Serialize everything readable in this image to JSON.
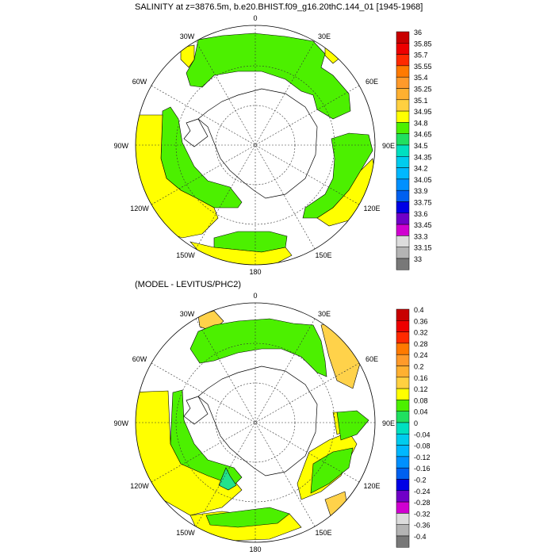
{
  "titles": {
    "top": "SALINITY at z=3876.5m, b.e20.BHIST.f09_g16.20thC.144_01 [1945-1968]",
    "bottom": "(MODEL - LEVITUS/PHC2)"
  },
  "longitude_labels": [
    "0",
    "30E",
    "60E",
    "90E",
    "120E",
    "150E",
    "180",
    "150W",
    "120W",
    "90W",
    "60W",
    "30W"
  ],
  "colors": {
    "ocean_green": "#4cf000",
    "yellow": "#ffff00",
    "pale_orange": "#ffd24a",
    "light_green": "#22e38b",
    "land": "#ffffff",
    "outline": "#000000"
  },
  "chart_data": [
    {
      "type": "heatmap",
      "projection": "south-polar-stereographic",
      "title": "SALINITY at z=3876.5m, b.e20.BHIST.f09_g16.20thC.144_01 [1945-1968]",
      "colorbar": {
        "labels": [
          "36",
          "35.85",
          "35.7",
          "35.55",
          "35.4",
          "35.25",
          "35.1",
          "34.95",
          "34.8",
          "34.65",
          "34.5",
          "34.35",
          "34.2",
          "34.05",
          "33.9",
          "33.75",
          "33.6",
          "33.45",
          "33.3",
          "33.15",
          "33"
        ],
        "colors": [
          "#c80000",
          "#ee0000",
          "#ff2a00",
          "#ff7a00",
          "#ff9a2a",
          "#ffb030",
          "#ffd040",
          "#ffff00",
          "#4cf000",
          "#20e060",
          "#00e0c0",
          "#00ccee",
          "#00b8ff",
          "#0090ff",
          "#0060f0",
          "#0000e6",
          "#7000c8",
          "#d000d0",
          "#dcdcdc",
          "#b4b4b4",
          "#787878"
        ]
      },
      "dominant_value_range": [
        34.8,
        34.95
      ],
      "longitude_labels": [
        "0",
        "30E",
        "60E",
        "90E",
        "120E",
        "150E",
        "180",
        "150W",
        "120W",
        "90W",
        "60W",
        "30W"
      ]
    },
    {
      "type": "heatmap",
      "projection": "south-polar-stereographic",
      "title": "(MODEL - LEVITUS/PHC2)",
      "colorbar": {
        "labels": [
          "0.4",
          "0.36",
          "0.32",
          "0.28",
          "0.24",
          "0.2",
          "0.16",
          "0.12",
          "0.08",
          "0.04",
          "0",
          "-0.04",
          "-0.08",
          "-0.12",
          "-0.16",
          "-0.2",
          "-0.24",
          "-0.28",
          "-0.32",
          "-0.36",
          "-0.4"
        ],
        "colors": [
          "#c80000",
          "#ee0000",
          "#ff2a00",
          "#ff7a00",
          "#ff9a2a",
          "#ffb030",
          "#ffd040",
          "#ffff00",
          "#4cf000",
          "#20e060",
          "#00e0c0",
          "#00ccee",
          "#00b8ff",
          "#0090ff",
          "#0060f0",
          "#0000e6",
          "#7000c8",
          "#d000d0",
          "#dcdcdc",
          "#b4b4b4",
          "#787878"
        ]
      },
      "dominant_value_range": [
        0.04,
        0.16
      ],
      "longitude_labels": [
        "0",
        "30E",
        "60E",
        "90E",
        "120E",
        "150E",
        "180",
        "150W",
        "120W",
        "90W",
        "60W",
        "30W"
      ]
    }
  ]
}
